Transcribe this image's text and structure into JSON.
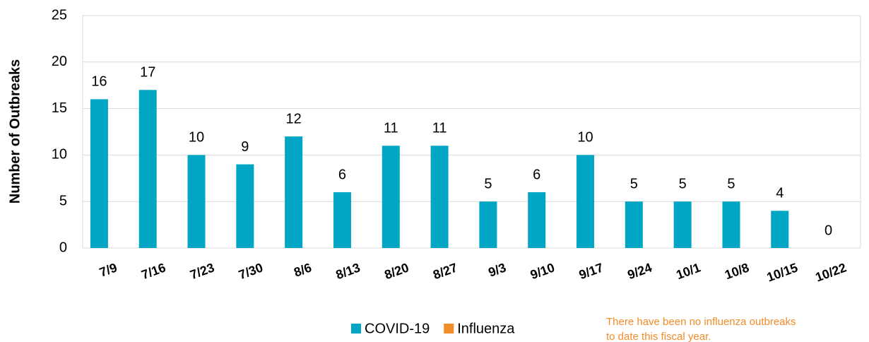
{
  "chart_data": {
    "type": "bar",
    "categories": [
      "7/9",
      "7/16",
      "7/23",
      "7/30",
      "8/6",
      "8/13",
      "8/20",
      "8/27",
      "9/3",
      "9/10",
      "9/17",
      "9/24",
      "10/1",
      "10/8",
      "10/15",
      "10/22"
    ],
    "series": [
      {
        "name": "COVID-19",
        "color": "#00a6c4",
        "values": [
          16,
          17,
          10,
          9,
          12,
          6,
          11,
          11,
          5,
          6,
          10,
          5,
          5,
          5,
          4,
          0
        ]
      },
      {
        "name": "Influenza",
        "color": "#f28c28",
        "values": [
          0,
          0,
          0,
          0,
          0,
          0,
          0,
          0,
          0,
          0,
          0,
          0,
          0,
          0,
          0,
          0
        ]
      }
    ],
    "ylabel": "Number of Outbreaks",
    "ylim": [
      0,
      25
    ],
    "yticks": [
      0,
      5,
      10,
      15,
      20,
      25
    ],
    "grid": true,
    "annotation": [
      "There have been no influenza outbreaks",
      "to date this fiscal year."
    ]
  }
}
